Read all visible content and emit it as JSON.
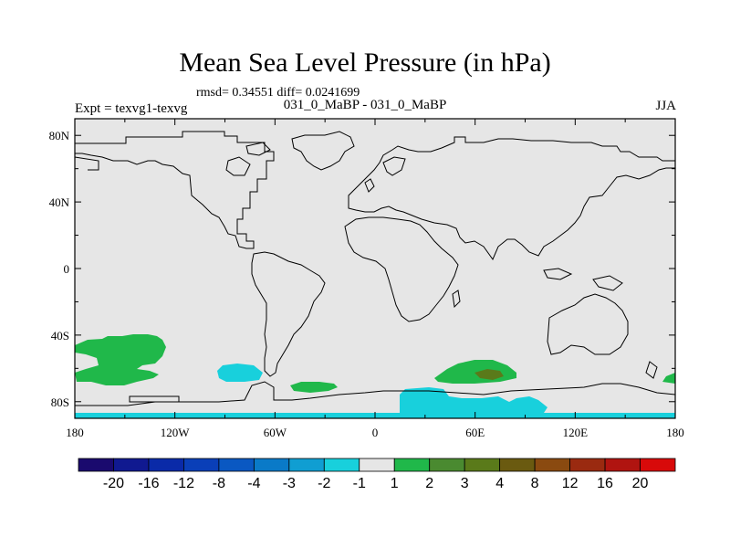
{
  "chart_data": {
    "type": "heatmap",
    "title": "Mean Sea Level Pressure (in hPa)",
    "stats_text": "rmsd= 0.34551  diff= 0.0241699",
    "left_label": "Expt = texvg1-texvg",
    "center_label": "031_0_MaBP - 031_0_MaBP",
    "right_label": "JJA",
    "x_ticks": [
      "180",
      "120W",
      "60W",
      "0",
      "60E",
      "120E",
      "180"
    ],
    "x_tick_values": [
      -180,
      -120,
      -60,
      0,
      60,
      120,
      180
    ],
    "y_ticks": [
      "80N",
      "40N",
      "0",
      "40S",
      "80S"
    ],
    "y_tick_values": [
      80,
      40,
      0,
      -40,
      -80
    ],
    "xlim": [
      -180,
      180
    ],
    "ylim": [
      -90,
      90
    ],
    "colorbar_labels": [
      "-20",
      "-16",
      "-12",
      "-8",
      "-4",
      "-3",
      "-2",
      "-1",
      "1",
      "2",
      "3",
      "4",
      "8",
      "12",
      "16",
      "20"
    ],
    "colorbar_colors": [
      "#1a0a6e",
      "#101990",
      "#0a2aa8",
      "#0a3fb8",
      "#0a58c2",
      "#0a7ac8",
      "#109ed2",
      "#18d0dc",
      "#e6e6e6",
      "#20b84a",
      "#4a8a30",
      "#5a7a1a",
      "#6a5a10",
      "#8a4a10",
      "#9a2a10",
      "#b01410",
      "#d80a0a"
    ],
    "anomaly_regions": [
      {
        "name": "south-pacific-positive",
        "level": "1 to 2"
      },
      {
        "name": "south-indian-positive",
        "level": "2 to 4"
      },
      {
        "name": "southeast-pacific-negative",
        "level": "-2 to -1"
      },
      {
        "name": "antarctic-negative",
        "level": "-2 to -1"
      }
    ]
  }
}
